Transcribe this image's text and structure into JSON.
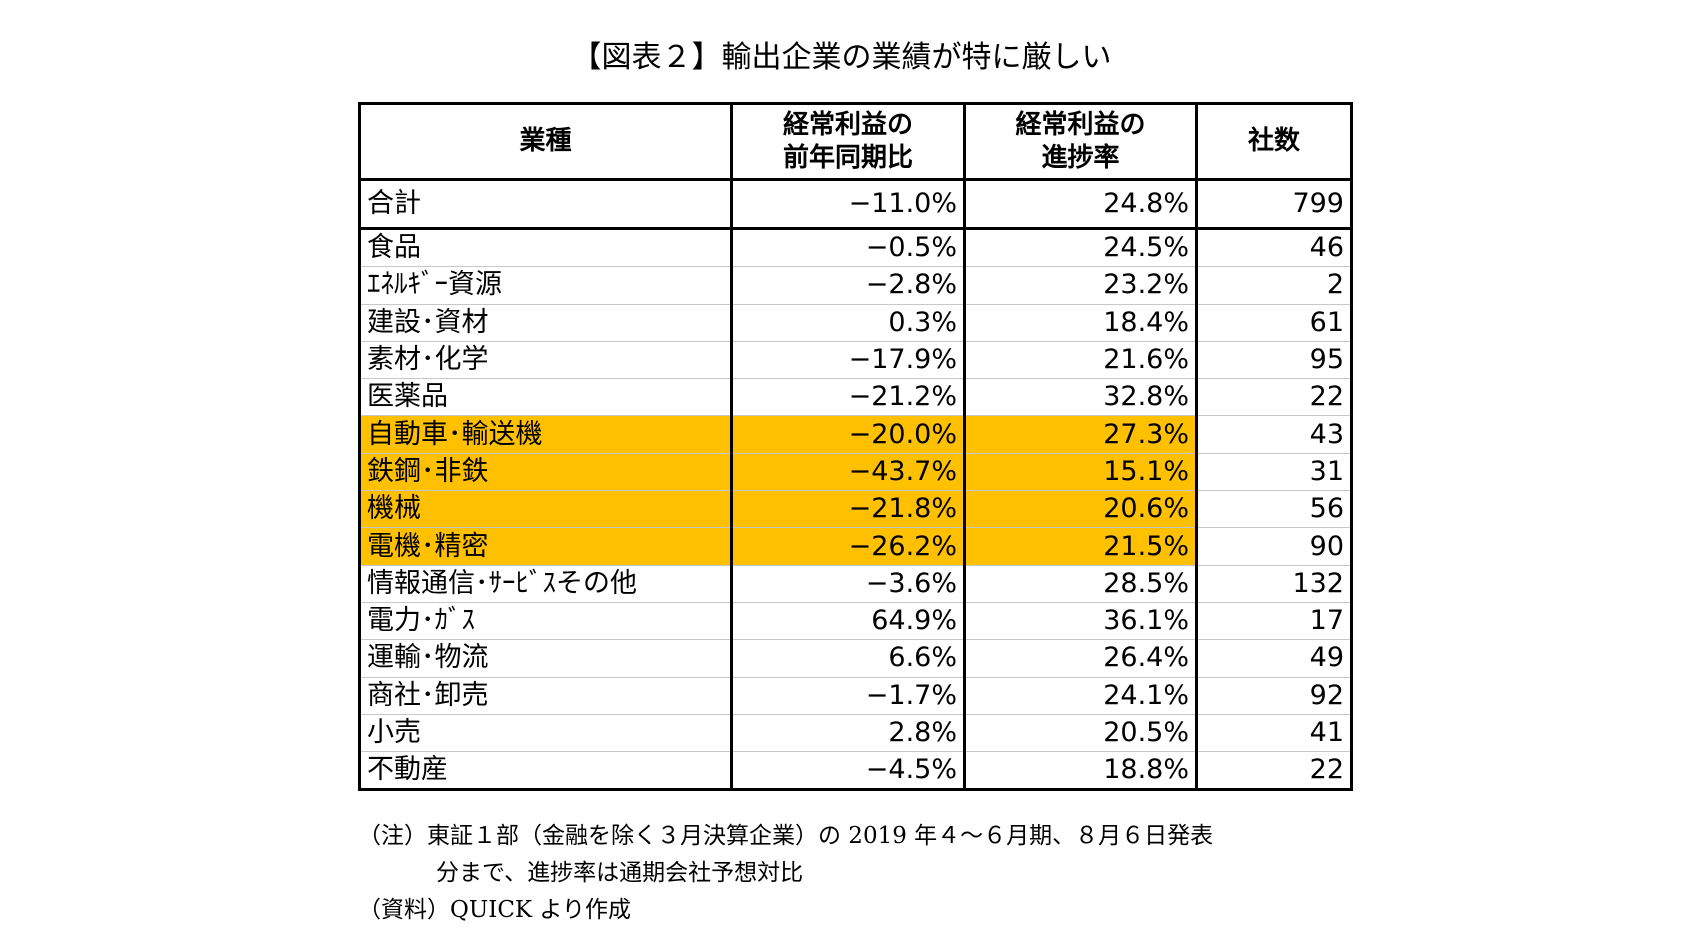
{
  "title": "【図表２】輸出企業の業績が特に厳しい",
  "table": {
    "headers": {
      "industry": "業種",
      "yoy_line1": "経常利益の",
      "yoy_line2": "前年同期比",
      "progress_line1": "経常利益の",
      "progress_line2": "進捗率",
      "companies": "社数"
    },
    "highlight_color": "#ffc000",
    "total": {
      "name": "合計",
      "yoy": "−11.0%",
      "progress": "24.8%",
      "count": "799"
    },
    "rows": [
      {
        "name": "食品",
        "yoy": "−0.5%",
        "progress": "24.5%",
        "count": "46",
        "highlight": false
      },
      {
        "name": "ｴﾈﾙｷﾞｰ資源",
        "yoy": "−2.8%",
        "progress": "23.2%",
        "count": "2",
        "highlight": false
      },
      {
        "name": "建設･資材",
        "yoy": "0.3%",
        "progress": "18.4%",
        "count": "61",
        "highlight": false
      },
      {
        "name": "素材･化学",
        "yoy": "−17.9%",
        "progress": "21.6%",
        "count": "95",
        "highlight": false
      },
      {
        "name": "医薬品",
        "yoy": "−21.2%",
        "progress": "32.8%",
        "count": "22",
        "highlight": false
      },
      {
        "name": "自動車･輸送機",
        "yoy": "−20.0%",
        "progress": "27.3%",
        "count": "43",
        "highlight": true
      },
      {
        "name": "鉄鋼･非鉄",
        "yoy": "−43.7%",
        "progress": "15.1%",
        "count": "31",
        "highlight": true
      },
      {
        "name": "機械",
        "yoy": "−21.8%",
        "progress": "20.6%",
        "count": "56",
        "highlight": true
      },
      {
        "name": "電機･精密",
        "yoy": "−26.2%",
        "progress": "21.5%",
        "count": "90",
        "highlight": true
      },
      {
        "name": "情報通信･ｻｰﾋﾞｽその他",
        "yoy": "−3.6%",
        "progress": "28.5%",
        "count": "132",
        "highlight": false
      },
      {
        "name": "電力･ｶﾞｽ",
        "yoy": "64.9%",
        "progress": "36.1%",
        "count": "17",
        "highlight": false
      },
      {
        "name": "運輸･物流",
        "yoy": "6.6%",
        "progress": "26.4%",
        "count": "49",
        "highlight": false
      },
      {
        "name": "商社･卸売",
        "yoy": "−1.7%",
        "progress": "24.1%",
        "count": "92",
        "highlight": false
      },
      {
        "name": "小売",
        "yoy": "2.8%",
        "progress": "20.5%",
        "count": "41",
        "highlight": false
      },
      {
        "name": "不動産",
        "yoy": "−4.5%",
        "progress": "18.8%",
        "count": "22",
        "highlight": false
      }
    ]
  },
  "notes": {
    "note_line1": "（注）東証１部（金融を除く３月決算企業）の 2019 年４～６月期、８月６日発表",
    "note_line2": "分まで、進捗率は通期会社予想対比",
    "source": "（資料）QUICK より作成"
  }
}
